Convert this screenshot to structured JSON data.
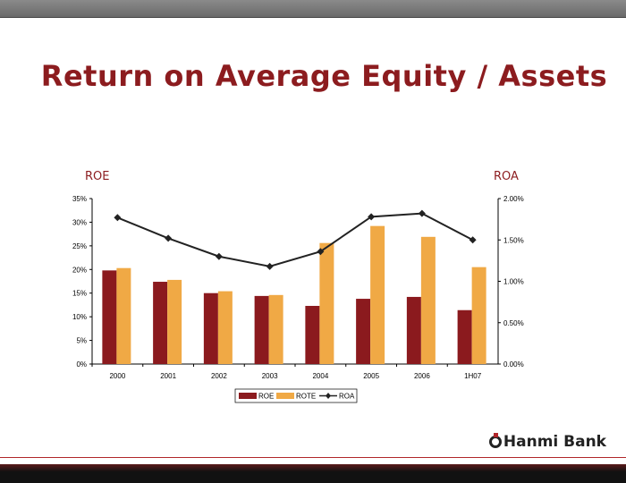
{
  "slide": {
    "title": "Return on Average Equity / Assets",
    "logo": "Hanmi Bank"
  },
  "chart_data": {
    "type": "bar",
    "title": "Return on Average Equity / Assets",
    "ylabel": "ROE",
    "y2label": "ROA",
    "categories": [
      "2000",
      "2001",
      "2002",
      "2003",
      "2004",
      "2005",
      "2006",
      "1H07"
    ],
    "ylim": [
      0,
      35
    ],
    "yticks": [
      "0%",
      "5%",
      "10%",
      "15%",
      "20%",
      "25%",
      "30%",
      "35%"
    ],
    "y2lim": [
      0,
      2
    ],
    "y2ticks": [
      "0.00%",
      "0.50%",
      "1.00%",
      "1.50%",
      "2.00%"
    ],
    "series": [
      {
        "name": "ROE",
        "type": "bar",
        "axis": "left",
        "color": "#8b1a1e",
        "values": [
          19.8,
          17.4,
          15.0,
          14.4,
          12.3,
          13.8,
          14.2,
          11.4
        ]
      },
      {
        "name": "ROTE",
        "type": "bar",
        "axis": "left",
        "color": "#f0a945",
        "values": [
          20.3,
          17.8,
          15.4,
          14.6,
          25.6,
          29.2,
          26.9,
          20.5
        ]
      },
      {
        "name": "ROA",
        "type": "line",
        "axis": "right",
        "color": "#222222",
        "values": [
          1.77,
          1.52,
          1.3,
          1.18,
          1.36,
          1.78,
          1.82,
          1.5
        ]
      }
    ],
    "legend": "bottom",
    "grid": false
  }
}
